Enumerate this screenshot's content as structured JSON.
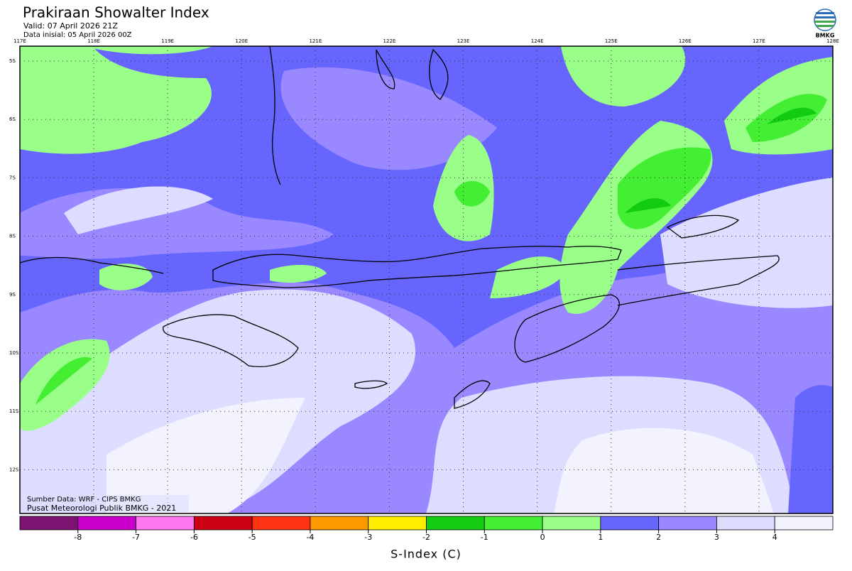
{
  "header": {
    "title": "Prakiraan Showalter Index",
    "valid": "Valid: 07 April 2026 21Z",
    "initial": "Data inisial: 05 April 2026 00Z",
    "logo_text": "BMKG"
  },
  "map": {
    "lon_labels": [
      "117E",
      "118E",
      "119E",
      "120E",
      "121E",
      "122E",
      "123E",
      "124E",
      "125E",
      "126E",
      "127E",
      "128E"
    ],
    "lat_labels": [
      "5S",
      "6S",
      "7S",
      "8S",
      "9S",
      "10S",
      "11S",
      "12S"
    ],
    "source": "Sumber Data: WRF - CIPS BMKG",
    "credit": "Pusat Meteorologi Publik BMKG - 2021"
  },
  "colorbar": {
    "colors": [
      "#7a1470",
      "#cc00cc",
      "#ff77ee",
      "#cc0011",
      "#ff3311",
      "#ff9900",
      "#ffee00",
      "#11cc11",
      "#44ee33",
      "#99ff88",
      "#6666ff",
      "#9988ff",
      "#ddddff",
      "#f3f3ff"
    ],
    "ticks": [
      -8,
      -7,
      -6,
      -5,
      -4,
      -3,
      -2,
      -1,
      0,
      1,
      2,
      3,
      4
    ],
    "label": "S-Index (C)"
  }
}
